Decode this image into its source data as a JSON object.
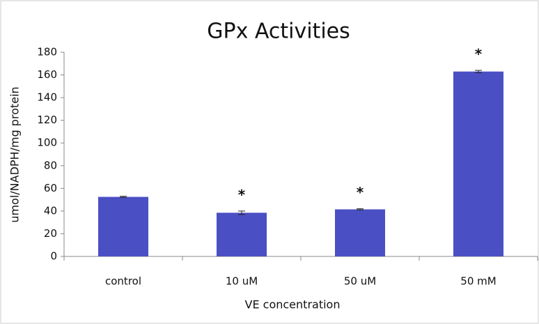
{
  "chart_data": {
    "type": "bar",
    "title": "GPx Activities",
    "x_label": "VE concentration",
    "y_label": "umol/NADPH/mg protein",
    "categories": [
      "control",
      "10 uM",
      "50 uM",
      "50 mM"
    ],
    "values": [
      52.5,
      38.5,
      41.5,
      163
    ],
    "errors": [
      0.5,
      1.5,
      0.5,
      1
    ],
    "annotations": [
      null,
      "*",
      "*",
      "*"
    ],
    "color": "#4b4fc4",
    "ylim": [
      0,
      180
    ],
    "yticks": [
      0,
      20,
      40,
      60,
      80,
      100,
      120,
      140,
      160,
      180
    ],
    "grid": false
  }
}
